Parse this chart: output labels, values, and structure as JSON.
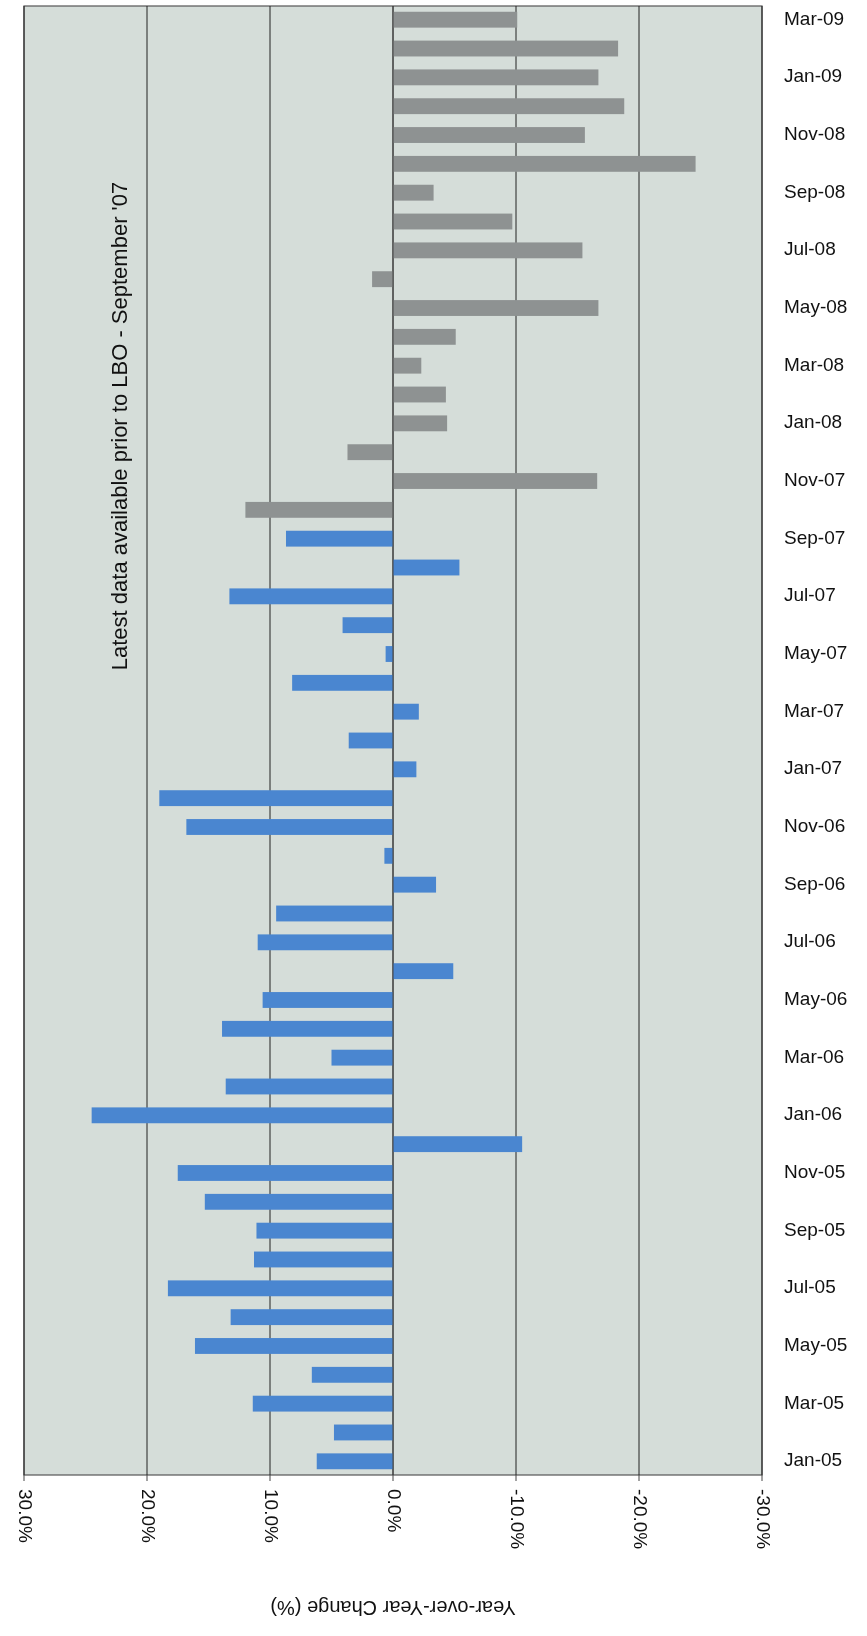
{
  "chart_data": {
    "type": "bar",
    "orientation": "horizontal",
    "xlabel": "Year-over-Year Change (%)",
    "annotations": [
      "Latest data available prior to LBO - September '07"
    ],
    "categories": [
      "Mar-09",
      null,
      "Jan-09",
      null,
      "Nov-08",
      null,
      "Sep-08",
      null,
      "Jul-08",
      null,
      "May-08",
      null,
      "Mar-08",
      null,
      "Jan-08",
      null,
      "Nov-07",
      null,
      "Sep-07",
      null,
      "Jul-07",
      null,
      "May-07",
      null,
      "Mar-07",
      null,
      "Jan-07",
      null,
      "Nov-06",
      null,
      "Sep-06",
      null,
      "Jul-06",
      null,
      "May-06",
      null,
      "Mar-06",
      null,
      "Jan-06",
      null,
      "Nov-05",
      null,
      "Sep-05",
      null,
      "Jul-05",
      null,
      "May-05",
      null,
      "Mar-05",
      null,
      "Jan-05"
    ],
    "values": [
      -10.1,
      -18.3,
      -16.7,
      -18.8,
      -15.6,
      -24.6,
      -3.3,
      -9.7,
      -15.4,
      1.7,
      -16.7,
      -5.1,
      -2.3,
      -4.3,
      -4.4,
      3.7,
      -16.6,
      12.0,
      8.7,
      -5.4,
      13.3,
      4.1,
      0.6,
      8.2,
      -2.1,
      3.6,
      -1.9,
      19.0,
      16.8,
      0.7,
      -3.5,
      9.5,
      11.0,
      -4.9,
      10.6,
      13.9,
      5.0,
      13.6,
      24.5,
      -10.5,
      17.5,
      15.3,
      11.1,
      11.3,
      18.3,
      13.2,
      16.1,
      6.6,
      11.4,
      4.8,
      6.2
    ],
    "colors": [
      "#8e9292",
      "#8e9292",
      "#8e9292",
      "#8e9292",
      "#8e9292",
      "#8e9292",
      "#8e9292",
      "#8e9292",
      "#8e9292",
      "#8e9292",
      "#8e9292",
      "#8e9292",
      "#8e9292",
      "#8e9292",
      "#8e9292",
      "#8e9292",
      "#8e9292",
      "#8e9292",
      "#4a86d0",
      "#4a86d0",
      "#4a86d0",
      "#4a86d0",
      "#4a86d0",
      "#4a86d0",
      "#4a86d0",
      "#4a86d0",
      "#4a86d0",
      "#4a86d0",
      "#4a86d0",
      "#4a86d0",
      "#4a86d0",
      "#4a86d0",
      "#4a86d0",
      "#4a86d0",
      "#4a86d0",
      "#4a86d0",
      "#4a86d0",
      "#4a86d0",
      "#4a86d0",
      "#4a86d0",
      "#4a86d0",
      "#4a86d0",
      "#4a86d0",
      "#4a86d0",
      "#4a86d0",
      "#4a86d0",
      "#4a86d0",
      "#4a86d0",
      "#4a86d0",
      "#4a86d0",
      "#4a86d0"
    ],
    "xlim": [
      30,
      -30
    ],
    "xticks": [
      {
        "value": 30,
        "label": "30.0%"
      },
      {
        "value": 20,
        "label": "20.0%"
      },
      {
        "value": 10,
        "label": "10.0%"
      },
      {
        "value": 0,
        "label": "0.0%"
      },
      {
        "value": -10,
        "label": "-10.0%"
      },
      {
        "value": -20,
        "label": "-20.0%"
      },
      {
        "value": -30,
        "label": "-30.0%"
      }
    ],
    "grid": "x"
  }
}
